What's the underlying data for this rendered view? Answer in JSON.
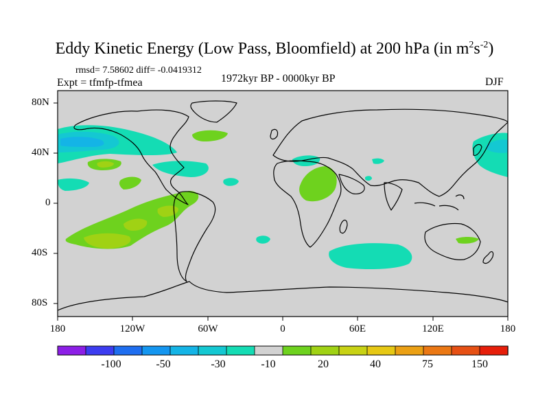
{
  "title": {
    "main": "Eddy Kinetic Energy (Low Pass, Bloomfield) at 200 hPa (in m",
    "sup1": "2",
    "mid": "s",
    "sup2": "-2",
    "close": ")"
  },
  "stats": "rmsd= 7.58602 diff= -0.0419312",
  "expt": "Expt = tfmfp-tfmea",
  "period": "1972kyr BP - 0000kyr BP",
  "season": "DJF",
  "lat_labels": [
    "80N",
    "40N",
    "0",
    "40S",
    "80S"
  ],
  "lon_labels": [
    "180",
    "120W",
    "60W",
    "0",
    "60E",
    "120E",
    "180"
  ],
  "colorbar": {
    "labels": [
      "-100",
      "-50",
      "-30",
      "-10",
      "20",
      "40",
      "75",
      "150"
    ],
    "colors": [
      "#8c1ee6",
      "#3c3cf0",
      "#1e6ef0",
      "#1496f0",
      "#14b4e6",
      "#14c8d2",
      "#14dcb4",
      "#d2d2d2",
      "#6ed21e",
      "#a0d214",
      "#c8d214",
      "#e6c814",
      "#eba014",
      "#eb7814",
      "#e65014",
      "#e61e0a"
    ]
  },
  "colors": {
    "land_ocean_bg": "#d2d2d2",
    "cyan": "#14dcb4",
    "blue_light": "#14c8d2",
    "blue_mid": "#14b4e6",
    "green": "#6ed21e",
    "yellow_green": "#a0d214"
  }
}
